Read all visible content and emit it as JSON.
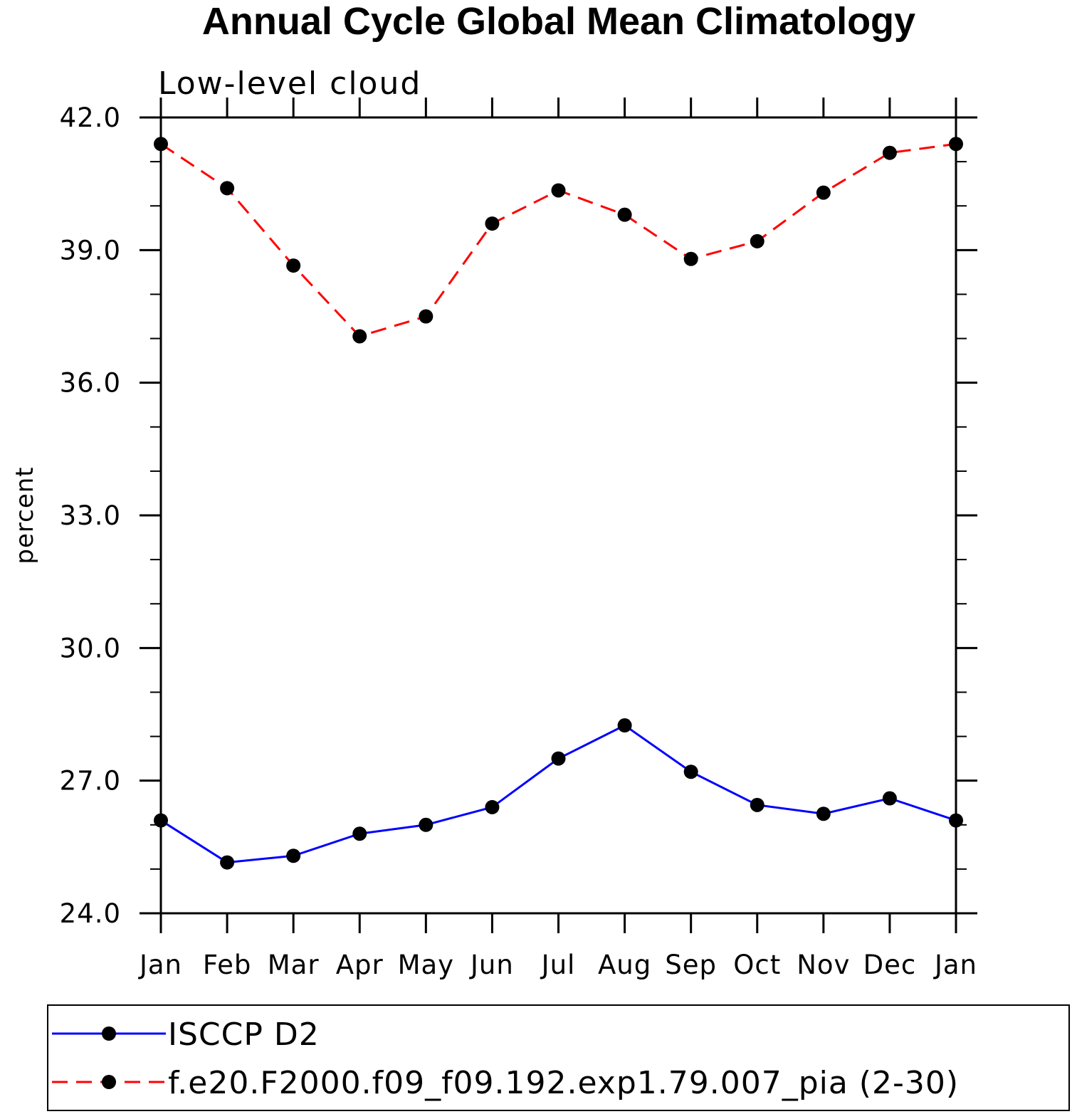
{
  "chart_data": {
    "type": "line",
    "title": "Annual Cycle Global Mean Climatology",
    "subtitle": "Low-level cloud",
    "xlabel": "",
    "ylabel": "percent",
    "categories": [
      "Jan",
      "Feb",
      "Mar",
      "Apr",
      "May",
      "Jun",
      "Jul",
      "Aug",
      "Sep",
      "Oct",
      "Nov",
      "Dec",
      "Jan"
    ],
    "ylim": [
      24.0,
      42.0
    ],
    "yticks": [
      "24.0",
      "27.0",
      "30.0",
      "33.0",
      "36.0",
      "39.0",
      "42.0"
    ],
    "grid": false,
    "legend_position": "bottom",
    "series": [
      {
        "name": "ISCCP D2",
        "color": "#0000ff",
        "style": "solid",
        "marker": "filled-circle",
        "values": [
          26.1,
          25.15,
          25.3,
          25.8,
          26.0,
          26.4,
          27.5,
          28.25,
          27.2,
          26.45,
          26.25,
          26.6,
          26.1
        ]
      },
      {
        "name": "f.e20.F2000.f09_f09.192.exp1.79.007_pia (2-30)",
        "color": "#ff0000",
        "style": "dashed",
        "marker": "filled-circle",
        "values": [
          41.4,
          40.4,
          38.65,
          37.05,
          37.5,
          39.6,
          40.35,
          39.8,
          38.8,
          39.2,
          40.3,
          41.2,
          41.4
        ]
      }
    ]
  }
}
